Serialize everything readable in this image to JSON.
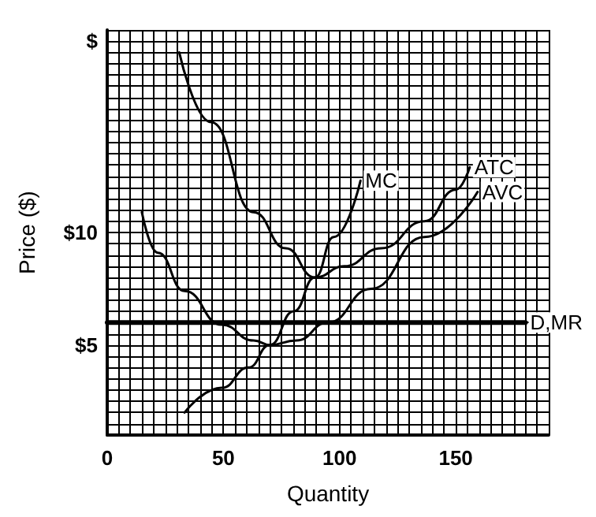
{
  "chart_data": {
    "type": "line",
    "xlabel": "Quantity",
    "ylabel": "Price ($)",
    "grid": true,
    "legend": false,
    "marker": "none",
    "line_style": "solid",
    "xlim": [
      0,
      190
    ],
    "ylim": [
      1,
      19
    ],
    "xticks": [
      0,
      {
        "value": 5,
        "label": null
      },
      {
        "value": 10,
        "label": null
      },
      {
        "value": 15,
        "label": null
      },
      {
        "value": 20,
        "label": null
      },
      {
        "value": 25,
        "label": null
      },
      {
        "value": 30,
        "label": null
      },
      {
        "value": 35,
        "label": null
      },
      {
        "value": 40,
        "label": null
      },
      {
        "value": 45,
        "label": null
      },
      50,
      {
        "value": 55,
        "label": null
      },
      {
        "value": 60,
        "label": null
      },
      {
        "value": 65,
        "label": null
      },
      {
        "value": 70,
        "label": null
      },
      {
        "value": 75,
        "label": null
      },
      {
        "value": 80,
        "label": null
      },
      {
        "value": 85,
        "label": null
      },
      {
        "value": 90,
        "label": null
      },
      {
        "value": 95,
        "label": null
      },
      100,
      {
        "value": 105,
        "label": null
      },
      {
        "value": 110,
        "label": null
      },
      {
        "value": 115,
        "label": null
      },
      {
        "value": 120,
        "label": null
      },
      {
        "value": 125,
        "label": null
      },
      {
        "value": 130,
        "label": null
      },
      {
        "value": 135,
        "label": null
      },
      {
        "value": 140,
        "label": null
      },
      {
        "value": 145,
        "label": null
      },
      150,
      {
        "value": 155,
        "label": null
      },
      {
        "value": 160,
        "label": null
      },
      {
        "value": 165,
        "label": null
      },
      {
        "value": 170,
        "label": null
      },
      {
        "value": 175,
        "label": null
      },
      {
        "value": 180,
        "label": null
      },
      {
        "value": 185,
        "label": null
      },
      {
        "value": 190,
        "label": null
      }
    ],
    "yticks": [
      {
        "value": 1.5,
        "label": null
      },
      {
        "value": 2,
        "label": null
      },
      {
        "value": 2.5,
        "label": null
      },
      {
        "value": 3,
        "label": null
      },
      {
        "value": 3.5,
        "label": null
      },
      {
        "value": 4,
        "label": null
      },
      {
        "value": 4.5,
        "label": null
      },
      {
        "value": 5,
        "label": "$5"
      },
      {
        "value": 5.5,
        "label": null
      },
      {
        "value": 6,
        "label": null
      },
      {
        "value": 6.5,
        "label": null
      },
      {
        "value": 7,
        "label": null
      },
      {
        "value": 7.5,
        "label": null
      },
      {
        "value": 8,
        "label": null
      },
      {
        "value": 8.5,
        "label": null
      },
      {
        "value": 9,
        "label": null
      },
      {
        "value": 9.5,
        "label": null
      },
      {
        "value": 10,
        "label": "$10"
      },
      {
        "value": 10.5,
        "label": null
      },
      {
        "value": 11,
        "label": null
      },
      {
        "value": 11.5,
        "label": null
      },
      {
        "value": 12,
        "label": null
      },
      {
        "value": 12.5,
        "label": null
      },
      {
        "value": 13,
        "label": null
      },
      {
        "value": 13.5,
        "label": null
      },
      {
        "value": 14,
        "label": null
      },
      {
        "value": 14.5,
        "label": null
      },
      {
        "value": 15,
        "label": null
      },
      {
        "value": 15.5,
        "label": null
      },
      {
        "value": 16,
        "label": null
      },
      {
        "value": 16.5,
        "label": null
      },
      {
        "value": 17,
        "label": null
      },
      {
        "value": 17.5,
        "label": null
      },
      {
        "value": 18,
        "label": null
      },
      {
        "value": 18.5,
        "label": "$"
      },
      {
        "value": 19,
        "label": null
      }
    ],
    "series": [
      {
        "name": "ATC",
        "color": "#000000",
        "x": [
          31,
          44.7,
          63,
          76.8,
          89.4,
          102,
          118,
          136.5,
          150,
          156
        ],
        "values": [
          18,
          14.9,
          10.9,
          9.3,
          8,
          8.5,
          9.3,
          10.5,
          11.9,
          12.9
        ]
      },
      {
        "name": "MC",
        "color": "#000000",
        "x": [
          33.3,
          49.3,
          60.8,
          70,
          80.3,
          89.4,
          97.5,
          109
        ],
        "values": [
          2,
          3.1,
          4,
          5,
          6.5,
          8,
          9.8,
          12.3
        ]
      },
      {
        "name": "AVC",
        "color": "#000000",
        "x": [
          14.9,
          21.8,
          33.3,
          49.3,
          63,
          70,
          81.4,
          95,
          113.5,
          136.5,
          159.4
        ],
        "values": [
          10.9,
          9.1,
          7.4,
          5.9,
          5.2,
          5,
          5.2,
          6,
          7.5,
          9.8,
          11.8
        ]
      },
      {
        "name": "D,MR",
        "color": "#000000",
        "x": [
          0,
          180
        ],
        "values": [
          6,
          6
        ]
      }
    ]
  }
}
